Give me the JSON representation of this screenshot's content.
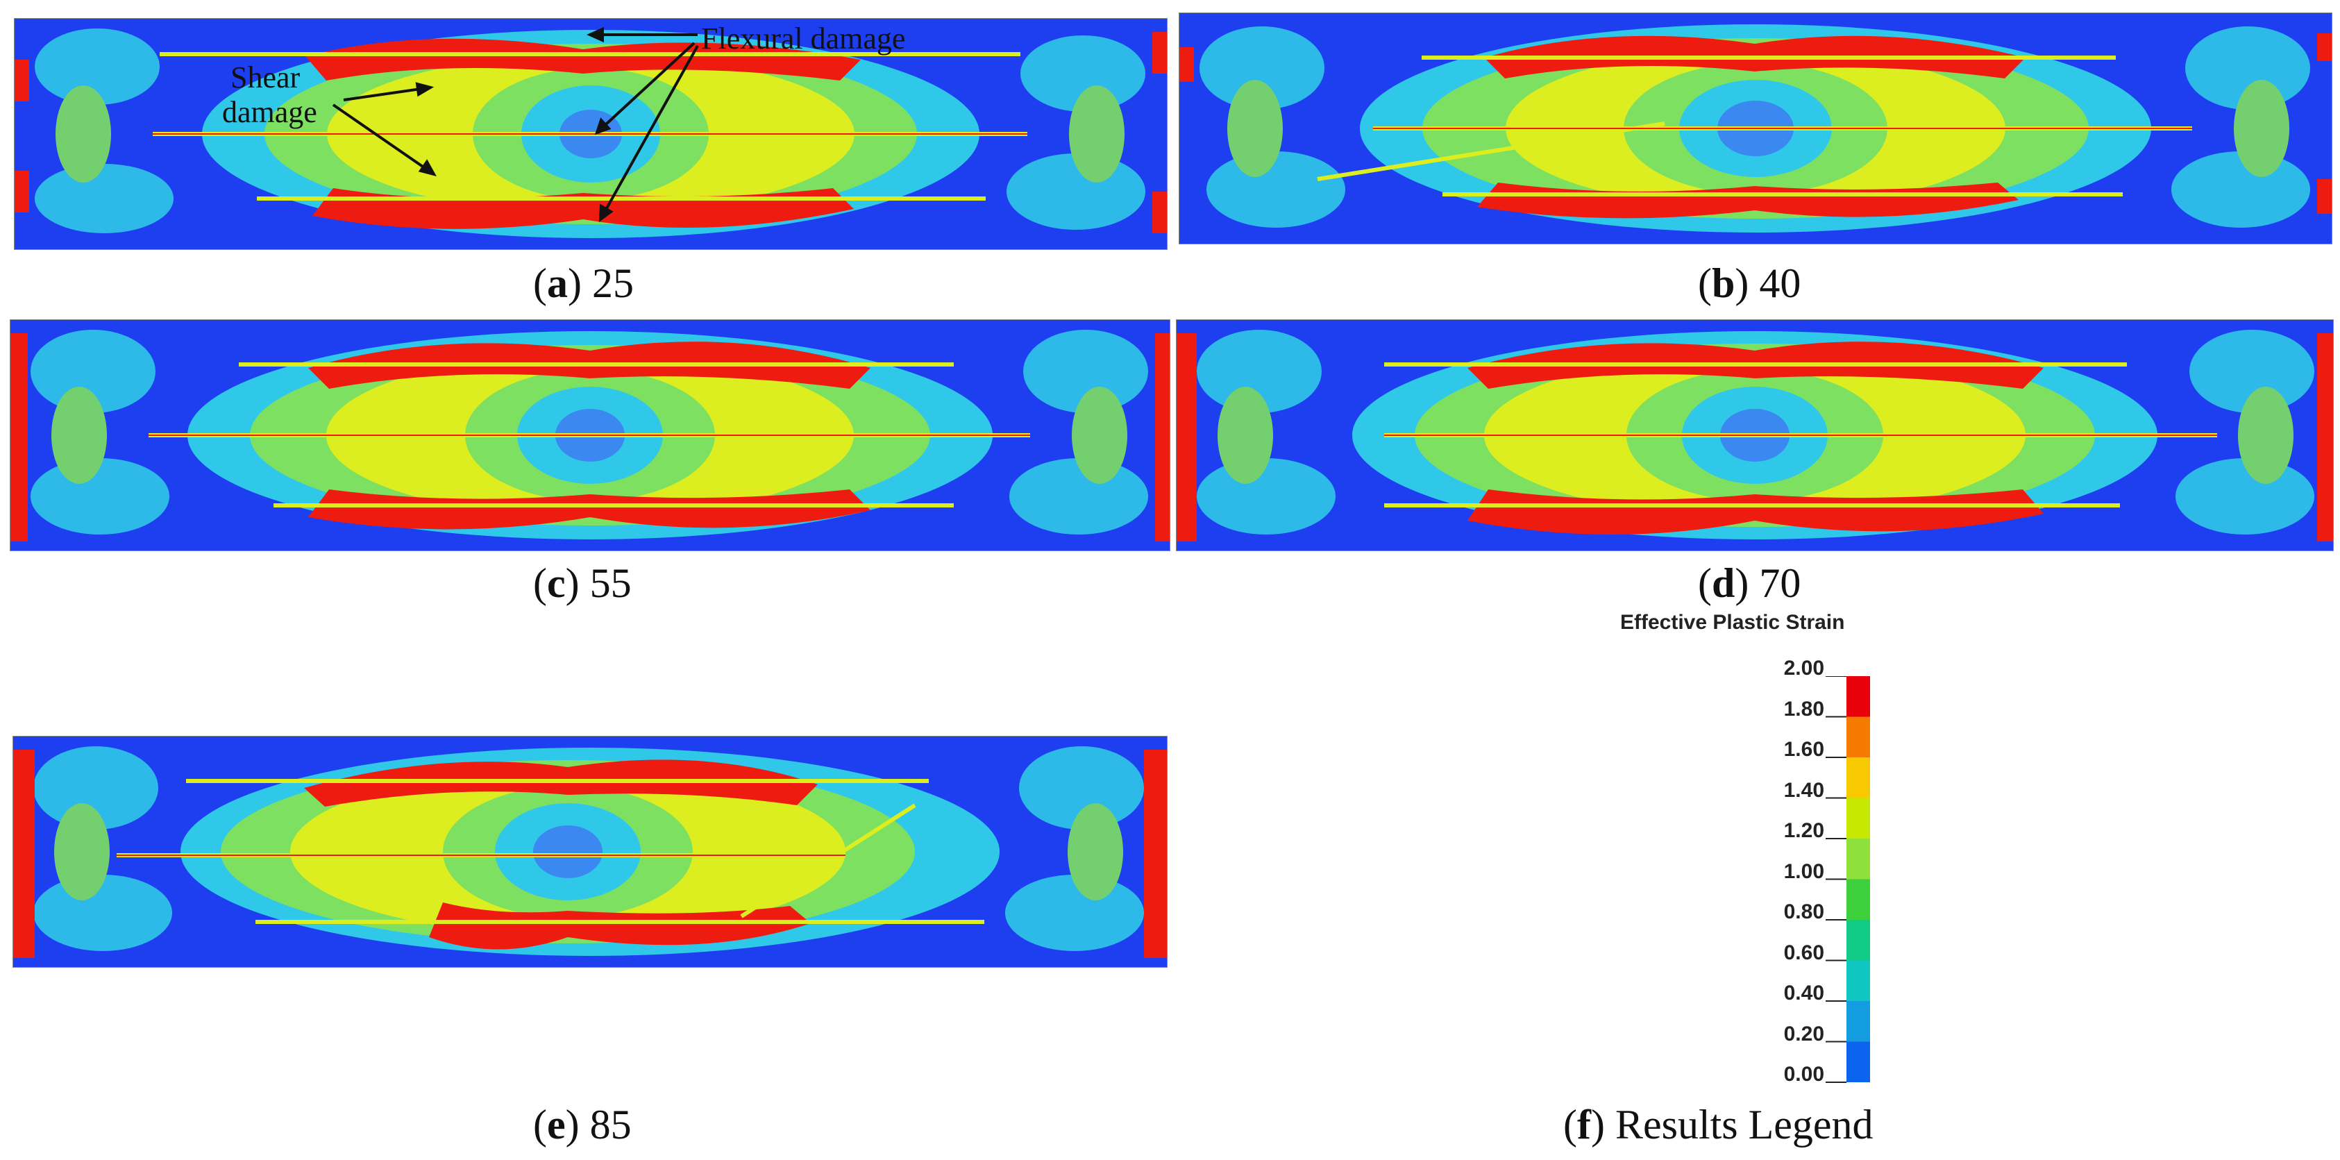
{
  "panels": [
    {
      "id": "a",
      "letter": "a",
      "value": "25"
    },
    {
      "id": "b",
      "letter": "b",
      "value": "40"
    },
    {
      "id": "c",
      "letter": "c",
      "value": "55"
    },
    {
      "id": "d",
      "letter": "d",
      "value": "70"
    },
    {
      "id": "e",
      "letter": "e",
      "value": "85"
    }
  ],
  "annotations": {
    "flexural": "Flexural damage",
    "shear_line1": "Shear",
    "shear_line2": "damage"
  },
  "legend": {
    "caption_letter": "f",
    "caption_text": "Results Legend",
    "title": "Effective Plastic Strain",
    "labels": [
      "2.00",
      "1.80",
      "1.60",
      "1.40",
      "1.20",
      "1.00",
      "0.80",
      "0.60",
      "0.40",
      "0.20",
      "0.00"
    ],
    "colors": [
      "#e8000b",
      "#f57a00",
      "#f8c800",
      "#c6e800",
      "#8fe03a",
      "#3dd03c",
      "#11cb86",
      "#10c6c0",
      "#149ce0",
      "#0a64ee",
      "#0016e2"
    ]
  },
  "palette": {
    "background_blue": "#1e3ff0",
    "red": "#ee1c10",
    "yellow": "#ddee20",
    "green": "#7ee060",
    "cyan": "#30c8e8",
    "light_blue": "#3a88f0"
  }
}
